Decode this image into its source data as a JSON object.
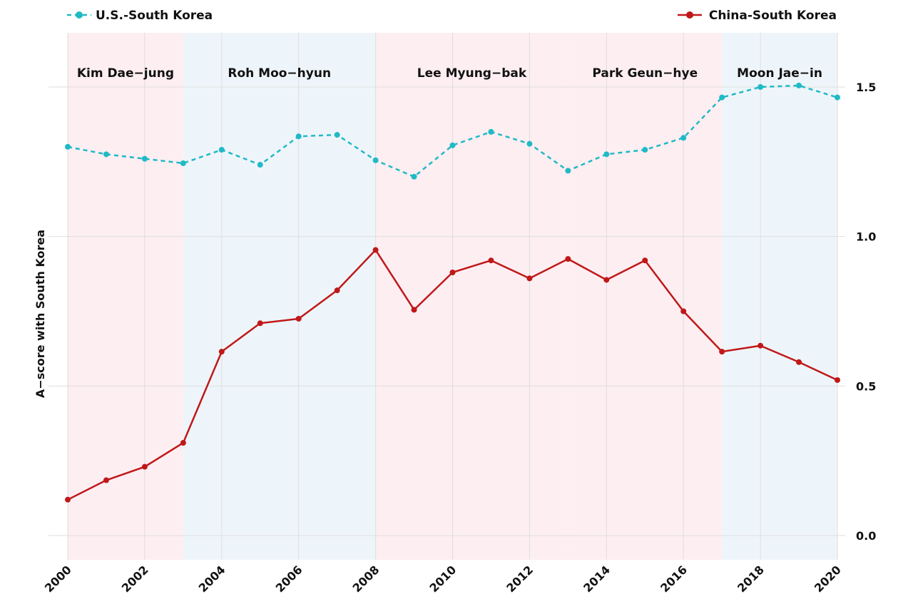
{
  "chart_data": {
    "type": "line",
    "title": "",
    "xlabel": "",
    "ylabel": "A−score with South Korea",
    "xlim": [
      2000,
      2020
    ],
    "ylim": [
      -0.07,
      1.68
    ],
    "x_ticks": [
      "2000",
      "2002",
      "2004",
      "2006",
      "2008",
      "2010",
      "2012",
      "2014",
      "2016",
      "2018",
      "2020"
    ],
    "y_ticks": [
      "0.0",
      "0.5",
      "1.0",
      "1.5"
    ],
    "y_axis_side": "right",
    "grid": true,
    "legend_placement": "top",
    "series": [
      {
        "name": "U.S.-South Korea",
        "style": "dashed",
        "color": "#1fbac5",
        "x": [
          2000,
          2001,
          2002,
          2003,
          2004,
          2005,
          2006,
          2007,
          2008,
          2009,
          2010,
          2011,
          2012,
          2013,
          2014,
          2015,
          2016,
          2017,
          2018,
          2019,
          2020
        ],
        "values": [
          1.3,
          1.275,
          1.26,
          1.245,
          1.29,
          1.24,
          1.335,
          1.34,
          1.255,
          1.2,
          1.305,
          1.35,
          1.31,
          1.22,
          1.275,
          1.29,
          1.33,
          1.465,
          1.5,
          1.505,
          1.465
        ]
      },
      {
        "name": "China-South Korea",
        "style": "solid",
        "color": "#c01818",
        "x": [
          2000,
          2001,
          2002,
          2003,
          2004,
          2005,
          2006,
          2007,
          2008,
          2009,
          2010,
          2011,
          2012,
          2013,
          2014,
          2015,
          2016,
          2017,
          2018,
          2019,
          2020
        ],
        "values": [
          0.12,
          0.185,
          0.23,
          0.31,
          0.615,
          0.71,
          0.725,
          0.82,
          0.955,
          0.755,
          0.88,
          0.92,
          0.86,
          0.925,
          0.855,
          0.92,
          0.75,
          0.615,
          0.635,
          0.58,
          0.52
        ]
      }
    ],
    "annotations": [
      {
        "label": "Kim Dae−jung",
        "x_start": 2000,
        "x_end": 2003,
        "color": "#fdeef2"
      },
      {
        "label": "Roh Moo−hyun",
        "x_start": 2003,
        "x_end": 2008,
        "color": "#eef5fa"
      },
      {
        "label": "Lee Myung−bak",
        "x_start": 2008,
        "x_end": 2013,
        "color": "#fdeef2"
      },
      {
        "label": "Park Geun−hye",
        "x_start": 2013,
        "x_end": 2017,
        "color": "#fdeef2"
      },
      {
        "label": "Moon Jae−in",
        "x_start": 2017,
        "x_end": 2020,
        "color": "#eef5fa"
      }
    ]
  }
}
